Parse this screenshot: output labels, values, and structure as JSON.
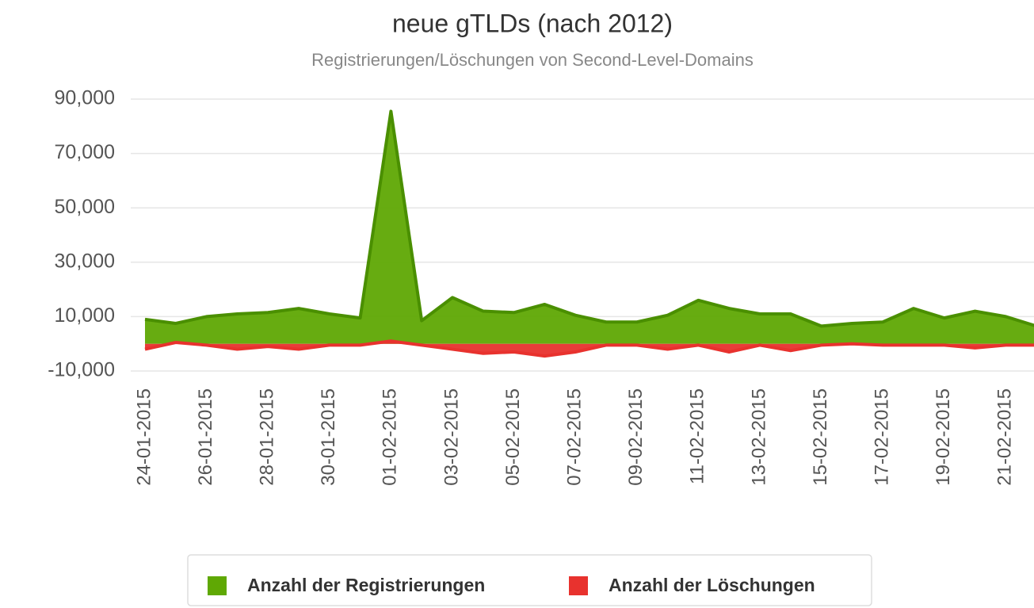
{
  "chart_data": {
    "type": "area",
    "title": "neue gTLDs (nach 2012)",
    "subtitle": "Registrierungen/Löschungen von Second-Level-Domains",
    "categories": [
      "24-01-2015",
      null,
      "26-01-2015",
      null,
      "28-01-2015",
      null,
      "30-01-2015",
      null,
      "01-02-2015",
      null,
      "03-02-2015",
      null,
      "05-02-2015",
      null,
      "07-02-2015",
      null,
      "09-02-2015",
      null,
      "11-02-2015",
      null,
      "13-02-2015",
      null,
      "15-02-2015",
      null,
      "17-02-2015",
      null,
      "19-02-2015",
      null,
      "21-02-2015",
      null
    ],
    "series": [
      {
        "name": "Anzahl der Registrierungen",
        "color": "#5fa804",
        "line_color": "#4a8f00",
        "values": [
          9000,
          7500,
          10000,
          11000,
          11500,
          13000,
          11000,
          9500,
          85500,
          8500,
          17000,
          12000,
          11500,
          14500,
          10500,
          8000,
          8000,
          10500,
          16000,
          13000,
          11000,
          11000,
          6500,
          7500,
          8000,
          13000,
          9500,
          12000,
          10000,
          6500
        ]
      },
      {
        "name": "Anzahl der Löschungen",
        "color": "#e8322e",
        "line_color": "#e8322e",
        "values": [
          -2000,
          500,
          -500,
          -2000,
          -1000,
          -2000,
          -500,
          -500,
          1000,
          -500,
          -2000,
          -3500,
          -3000,
          -4500,
          -3000,
          -500,
          -500,
          -2000,
          -500,
          -3000,
          -500,
          -2500,
          -500,
          0,
          -500,
          -500,
          -500,
          -1500,
          -500,
          -500
        ]
      }
    ],
    "ylim": [
      -10000,
      90000
    ],
    "yticks": [
      {
        "value": -10000,
        "label": "-10,000"
      },
      {
        "value": 10000,
        "label": "10,000"
      },
      {
        "value": 30000,
        "label": "30,000"
      },
      {
        "value": 50000,
        "label": "50,000"
      },
      {
        "value": 70000,
        "label": "70,000"
      },
      {
        "value": 90000,
        "label": "90,000"
      }
    ],
    "grid": true
  }
}
